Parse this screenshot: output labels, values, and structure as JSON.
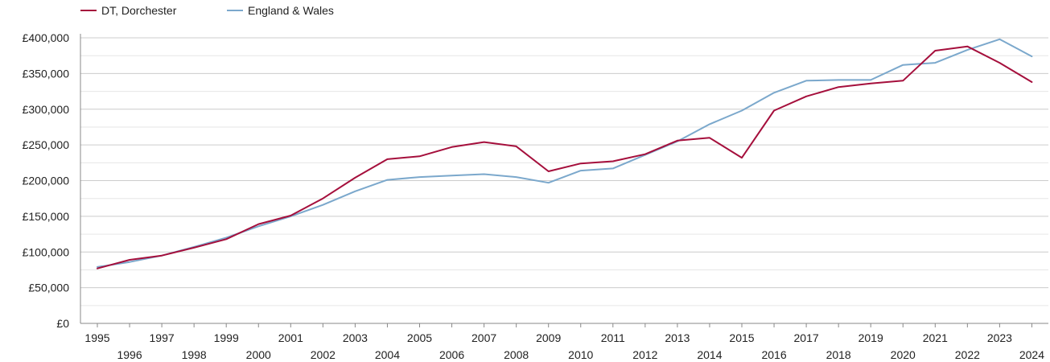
{
  "chart_data": {
    "type": "line",
    "x": [
      1995,
      1996,
      1997,
      1998,
      1999,
      2000,
      2001,
      2002,
      2003,
      2004,
      2005,
      2006,
      2007,
      2008,
      2009,
      2010,
      2011,
      2012,
      2013,
      2014,
      2015,
      2016,
      2017,
      2018,
      2019,
      2020,
      2021,
      2022,
      2023,
      2024
    ],
    "x_tick_labels": [
      "1995",
      "1996",
      "1997",
      "1998",
      "1999",
      "2000",
      "2001",
      "2002",
      "2003",
      "2004",
      "2005",
      "2006",
      "2007",
      "2008",
      "2009",
      "2010",
      "2011",
      "2012",
      "2013",
      "2014",
      "2015",
      "2016",
      "2017",
      "2018",
      "2019",
      "2020",
      "2021",
      "2022",
      "2023",
      "2024"
    ],
    "y_ticks": [
      0,
      50000,
      100000,
      150000,
      200000,
      250000,
      300000,
      350000,
      400000
    ],
    "y_tick_labels": [
      "£0",
      "£50,000",
      "£100,000",
      "£150,000",
      "£200,000",
      "£250,000",
      "£300,000",
      "£350,000",
      "£400,000"
    ],
    "ylim": [
      0,
      400000
    ],
    "grid": true,
    "legend_position": "top-left",
    "series": [
      {
        "name": "DT, Dorchester",
        "color": "#a50f3c",
        "values": [
          77000,
          89000,
          95000,
          106000,
          118000,
          139000,
          151000,
          175000,
          204000,
          230000,
          234000,
          247000,
          254000,
          248000,
          213000,
          224000,
          227000,
          237000,
          256000,
          260000,
          232000,
          298000,
          318000,
          331000,
          336000,
          340000,
          382000,
          388000,
          365000,
          338000
        ]
      },
      {
        "name": "England & Wales",
        "color": "#7ba8cc",
        "values": [
          79000,
          86000,
          95000,
          107000,
          120000,
          136000,
          150000,
          166000,
          185000,
          201000,
          205000,
          207000,
          209000,
          205000,
          197000,
          214000,
          217000,
          236000,
          255000,
          279000,
          298000,
          323000,
          340000,
          341000,
          341000,
          362000,
          365000,
          383000,
          398000,
          374000
        ]
      }
    ]
  }
}
